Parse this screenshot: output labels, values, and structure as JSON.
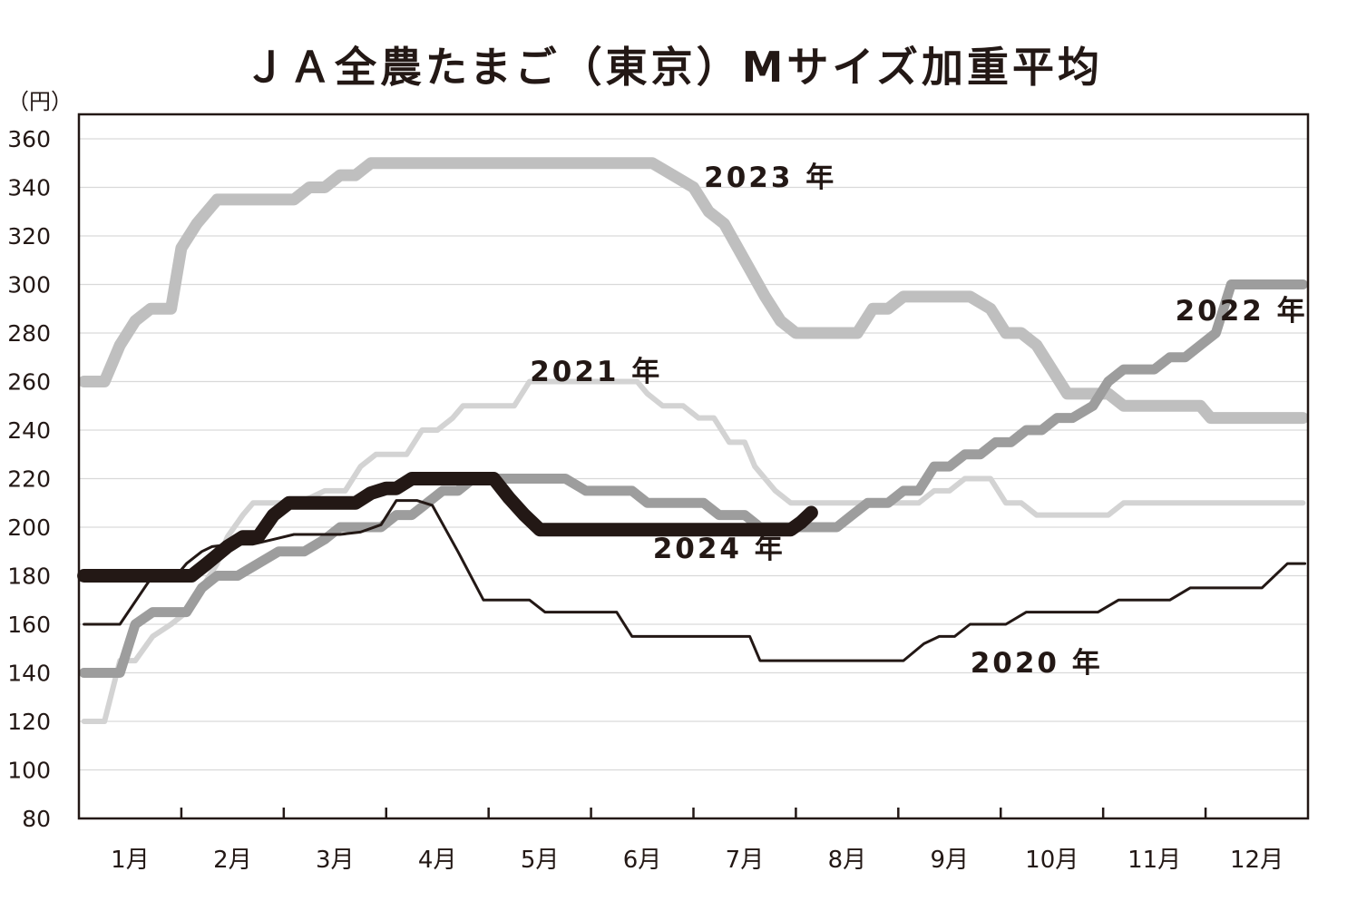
{
  "chart_data": {
    "type": "line",
    "title": "ＪＡ全農たまご（東京）Mサイズ加重平均",
    "ylabel": "（円）",
    "ylim": [
      80,
      360
    ],
    "yticks": [
      80,
      100,
      120,
      140,
      160,
      180,
      200,
      220,
      240,
      260,
      280,
      300,
      320,
      340,
      360
    ],
    "xlim": [
      0,
      12
    ],
    "categories": [
      "1月",
      "2月",
      "3月",
      "4月",
      "5月",
      "6月",
      "7月",
      "8月",
      "9月",
      "10月",
      "11月",
      "12月"
    ],
    "grid": true,
    "series": [
      {
        "name": "2020 年",
        "color": "#231815",
        "points": [
          [
            0.05,
            160
          ],
          [
            0.4,
            160
          ],
          [
            0.72,
            180
          ],
          [
            0.95,
            180
          ],
          [
            1.05,
            185
          ],
          [
            1.2,
            190
          ],
          [
            1.3,
            192
          ],
          [
            1.5,
            193
          ],
          [
            1.7,
            193
          ],
          [
            1.9,
            195
          ],
          [
            2.1,
            197
          ],
          [
            2.3,
            197
          ],
          [
            2.55,
            197
          ],
          [
            2.75,
            198
          ],
          [
            2.95,
            201
          ],
          [
            3.1,
            211
          ],
          [
            3.3,
            211
          ],
          [
            3.45,
            209
          ],
          [
            3.7,
            190
          ],
          [
            3.95,
            170
          ],
          [
            4.2,
            170
          ],
          [
            4.4,
            170
          ],
          [
            4.55,
            165
          ],
          [
            4.8,
            165
          ],
          [
            5.05,
            165
          ],
          [
            5.25,
            165
          ],
          [
            5.4,
            155
          ],
          [
            5.6,
            155
          ],
          [
            5.95,
            155
          ],
          [
            6.1,
            155
          ],
          [
            6.35,
            155
          ],
          [
            6.55,
            155
          ],
          [
            6.65,
            145
          ],
          [
            6.9,
            145
          ],
          [
            7.4,
            145
          ],
          [
            7.75,
            145
          ],
          [
            8.05,
            145
          ],
          [
            8.25,
            152
          ],
          [
            8.4,
            155
          ],
          [
            8.55,
            155
          ],
          [
            8.7,
            160
          ],
          [
            8.9,
            160
          ],
          [
            9.05,
            160
          ],
          [
            9.25,
            165
          ],
          [
            9.45,
            165
          ],
          [
            9.75,
            165
          ],
          [
            9.95,
            165
          ],
          [
            10.15,
            170
          ],
          [
            10.4,
            170
          ],
          [
            10.65,
            170
          ],
          [
            10.85,
            175
          ],
          [
            11.1,
            175
          ],
          [
            11.4,
            175
          ],
          [
            11.55,
            175
          ],
          [
            11.8,
            185
          ],
          [
            11.97,
            185
          ]
        ]
      },
      {
        "name": "2021 年",
        "color": "#d3d3d3",
        "points": [
          [
            0.05,
            120
          ],
          [
            0.25,
            120
          ],
          [
            0.4,
            145
          ],
          [
            0.55,
            145
          ],
          [
            0.72,
            155
          ],
          [
            0.9,
            160
          ],
          [
            1.05,
            165
          ],
          [
            1.2,
            175
          ],
          [
            1.35,
            185
          ],
          [
            1.45,
            196
          ],
          [
            1.6,
            205
          ],
          [
            1.7,
            210
          ],
          [
            1.9,
            210
          ],
          [
            2.1,
            210
          ],
          [
            2.25,
            212
          ],
          [
            2.4,
            215
          ],
          [
            2.6,
            215
          ],
          [
            2.75,
            225
          ],
          [
            2.9,
            230
          ],
          [
            3.2,
            230
          ],
          [
            3.35,
            240
          ],
          [
            3.5,
            240
          ],
          [
            3.65,
            245
          ],
          [
            3.75,
            250
          ],
          [
            4.05,
            250
          ],
          [
            4.25,
            250
          ],
          [
            4.4,
            260
          ],
          [
            4.7,
            260
          ],
          [
            5.05,
            260
          ],
          [
            5.3,
            260
          ],
          [
            5.45,
            260
          ],
          [
            5.55,
            255
          ],
          [
            5.7,
            250
          ],
          [
            5.9,
            250
          ],
          [
            6.05,
            245
          ],
          [
            6.2,
            245
          ],
          [
            6.35,
            235
          ],
          [
            6.5,
            235
          ],
          [
            6.6,
            225
          ],
          [
            6.8,
            215
          ],
          [
            6.95,
            210
          ],
          [
            7.1,
            210
          ],
          [
            7.3,
            210
          ],
          [
            7.6,
            210
          ],
          [
            7.9,
            210
          ],
          [
            8.2,
            210
          ],
          [
            8.35,
            215
          ],
          [
            8.5,
            215
          ],
          [
            8.65,
            220
          ],
          [
            8.9,
            220
          ],
          [
            9.05,
            210
          ],
          [
            9.2,
            210
          ],
          [
            9.35,
            205
          ],
          [
            9.6,
            205
          ],
          [
            9.8,
            205
          ],
          [
            10.05,
            205
          ],
          [
            10.2,
            210
          ],
          [
            10.4,
            210
          ],
          [
            10.6,
            210
          ],
          [
            10.9,
            210
          ],
          [
            11.3,
            210
          ],
          [
            11.6,
            210
          ],
          [
            11.95,
            210
          ]
        ]
      },
      {
        "name": "2022 年",
        "color": "#9d9d9d",
        "points": [
          [
            0.05,
            140
          ],
          [
            0.4,
            140
          ],
          [
            0.55,
            160
          ],
          [
            0.72,
            165
          ],
          [
            0.85,
            165
          ],
          [
            1.05,
            165
          ],
          [
            1.2,
            175
          ],
          [
            1.35,
            180
          ],
          [
            1.55,
            180
          ],
          [
            1.75,
            185
          ],
          [
            1.95,
            190
          ],
          [
            2.2,
            190
          ],
          [
            2.4,
            195
          ],
          [
            2.55,
            200
          ],
          [
            2.75,
            200
          ],
          [
            2.95,
            200
          ],
          [
            3.1,
            205
          ],
          [
            3.25,
            205
          ],
          [
            3.4,
            210
          ],
          [
            3.55,
            215
          ],
          [
            3.7,
            215
          ],
          [
            3.85,
            220
          ],
          [
            4.05,
            220
          ],
          [
            4.25,
            220
          ],
          [
            4.5,
            220
          ],
          [
            4.75,
            220
          ],
          [
            4.95,
            215
          ],
          [
            5.2,
            215
          ],
          [
            5.4,
            215
          ],
          [
            5.55,
            210
          ],
          [
            5.75,
            210
          ],
          [
            5.95,
            210
          ],
          [
            6.1,
            210
          ],
          [
            6.25,
            205
          ],
          [
            6.5,
            205
          ],
          [
            6.65,
            200
          ],
          [
            6.8,
            200
          ],
          [
            6.95,
            200
          ],
          [
            7.1,
            200
          ],
          [
            7.3,
            200
          ],
          [
            7.4,
            200
          ],
          [
            7.55,
            205
          ],
          [
            7.7,
            210
          ],
          [
            7.9,
            210
          ],
          [
            8.05,
            215
          ],
          [
            8.2,
            215
          ],
          [
            8.35,
            225
          ],
          [
            8.5,
            225
          ],
          [
            8.65,
            230
          ],
          [
            8.8,
            230
          ],
          [
            8.95,
            235
          ],
          [
            9.1,
            235
          ],
          [
            9.25,
            240
          ],
          [
            9.4,
            240
          ],
          [
            9.55,
            245
          ],
          [
            9.7,
            245
          ],
          [
            9.9,
            250
          ],
          [
            10.05,
            260
          ],
          [
            10.2,
            265
          ],
          [
            10.35,
            265
          ],
          [
            10.5,
            265
          ],
          [
            10.65,
            270
          ],
          [
            10.8,
            270
          ],
          [
            10.95,
            275
          ],
          [
            11.1,
            280
          ],
          [
            11.25,
            300
          ],
          [
            11.4,
            300
          ],
          [
            11.55,
            300
          ],
          [
            11.95,
            300
          ]
        ]
      },
      {
        "name": "2023 年",
        "color": "#bfbfbf",
        "points": [
          [
            0.05,
            260
          ],
          [
            0.25,
            260
          ],
          [
            0.4,
            275
          ],
          [
            0.55,
            285
          ],
          [
            0.7,
            290
          ],
          [
            0.9,
            290
          ],
          [
            1.0,
            315
          ],
          [
            1.15,
            325
          ],
          [
            1.35,
            335
          ],
          [
            1.55,
            335
          ],
          [
            1.75,
            335
          ],
          [
            1.95,
            335
          ],
          [
            2.1,
            335
          ],
          [
            2.25,
            340
          ],
          [
            2.4,
            340
          ],
          [
            2.55,
            345
          ],
          [
            2.7,
            345
          ],
          [
            2.85,
            350
          ],
          [
            3.05,
            350
          ],
          [
            3.5,
            350
          ],
          [
            4.0,
            350
          ],
          [
            4.5,
            350
          ],
          [
            5.0,
            350
          ],
          [
            5.4,
            350
          ],
          [
            5.6,
            350
          ],
          [
            5.8,
            345
          ],
          [
            6.0,
            340
          ],
          [
            6.15,
            330
          ],
          [
            6.3,
            325
          ],
          [
            6.5,
            310
          ],
          [
            6.7,
            295
          ],
          [
            6.85,
            285
          ],
          [
            7.0,
            280
          ],
          [
            7.2,
            280
          ],
          [
            7.4,
            280
          ],
          [
            7.6,
            280
          ],
          [
            7.75,
            290
          ],
          [
            7.9,
            290
          ],
          [
            8.05,
            295
          ],
          [
            8.25,
            295
          ],
          [
            8.45,
            295
          ],
          [
            8.7,
            295
          ],
          [
            8.9,
            290
          ],
          [
            9.05,
            280
          ],
          [
            9.2,
            280
          ],
          [
            9.35,
            275
          ],
          [
            9.5,
            265
          ],
          [
            9.65,
            255
          ],
          [
            9.85,
            255
          ],
          [
            10.05,
            255
          ],
          [
            10.2,
            250
          ],
          [
            10.4,
            250
          ],
          [
            10.6,
            250
          ],
          [
            10.8,
            250
          ],
          [
            10.95,
            250
          ],
          [
            11.05,
            245
          ],
          [
            11.25,
            245
          ],
          [
            11.5,
            245
          ],
          [
            11.95,
            245
          ]
        ]
      },
      {
        "name": "2024 年",
        "color": "#231815",
        "points": [
          [
            0.05,
            180
          ],
          [
            0.4,
            180
          ],
          [
            0.7,
            180
          ],
          [
            1.0,
            180
          ],
          [
            1.1,
            180
          ],
          [
            1.25,
            185
          ],
          [
            1.45,
            192
          ],
          [
            1.6,
            196
          ],
          [
            1.75,
            196
          ],
          [
            1.9,
            205
          ],
          [
            2.05,
            210
          ],
          [
            2.25,
            210
          ],
          [
            2.5,
            210
          ],
          [
            2.7,
            210
          ],
          [
            2.85,
            214
          ],
          [
            3.0,
            216
          ],
          [
            3.1,
            216
          ],
          [
            3.25,
            220
          ],
          [
            3.45,
            220
          ],
          [
            3.65,
            220
          ],
          [
            3.9,
            220
          ],
          [
            4.05,
            220
          ],
          [
            4.2,
            212
          ],
          [
            4.35,
            205
          ],
          [
            4.5,
            199
          ],
          [
            4.7,
            199
          ],
          [
            5.0,
            199
          ],
          [
            5.3,
            199
          ],
          [
            5.6,
            199
          ],
          [
            5.9,
            199
          ],
          [
            6.2,
            199
          ],
          [
            6.5,
            199
          ],
          [
            6.8,
            199
          ],
          [
            6.95,
            199
          ],
          [
            7.05,
            202
          ],
          [
            7.15,
            206
          ]
        ]
      }
    ],
    "annotations": [
      {
        "text": "2020 年",
        "x": 9.35,
        "y": 144
      },
      {
        "text": "2021 年",
        "x": 5.05,
        "y": 264
      },
      {
        "text": "2022 年",
        "x": 11.35,
        "y": 289
      },
      {
        "text": "2023 年",
        "x": 6.75,
        "y": 344
      },
      {
        "text": "2024 年",
        "x": 6.25,
        "y": 191
      }
    ]
  }
}
